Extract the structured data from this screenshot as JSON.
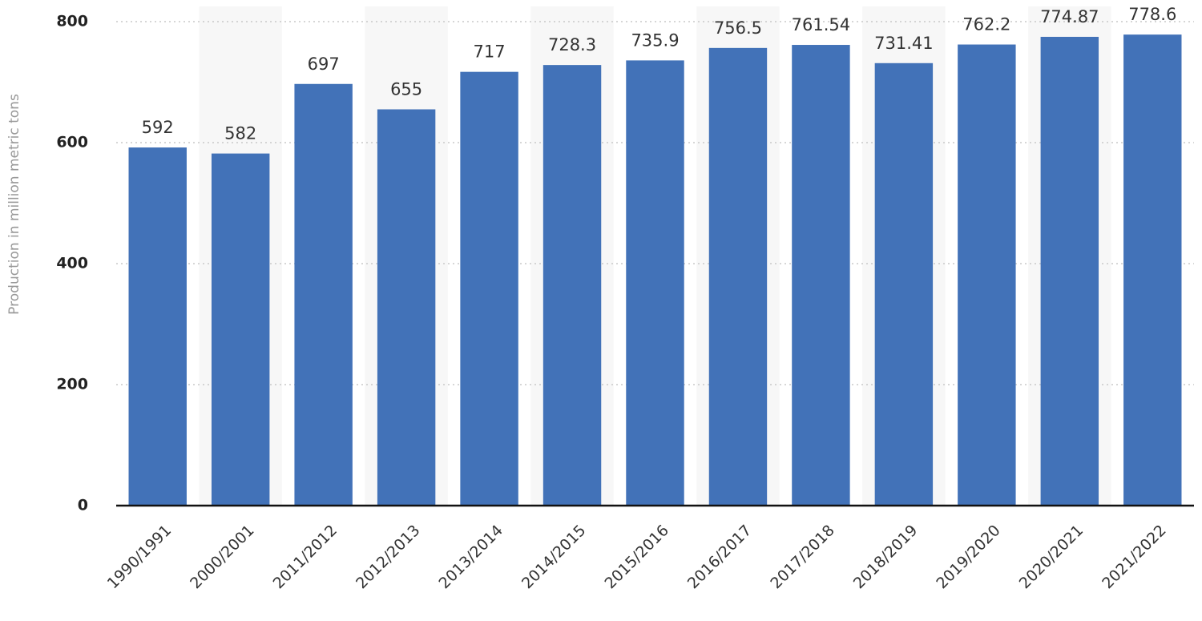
{
  "chart_data": {
    "type": "bar",
    "y_label": "Production in million metric tons",
    "categories": [
      "1990/1991",
      "2000/2001",
      "2011/2012",
      "2012/2013",
      "2013/2014",
      "2014/2015",
      "2015/2016",
      "2016/2017",
      "2017/2018",
      "2018/2019",
      "2019/2020",
      "2020/2021",
      "2021/2022"
    ],
    "values": [
      592,
      582,
      697,
      655,
      717,
      728.3,
      735.9,
      756.5,
      761.54,
      731.41,
      762.2,
      774.87,
      778.6
    ],
    "color": "#4272b8",
    "ylim": [
      0,
      800
    ],
    "yticks": [
      0,
      200,
      400,
      600,
      800
    ],
    "grid": true
  }
}
